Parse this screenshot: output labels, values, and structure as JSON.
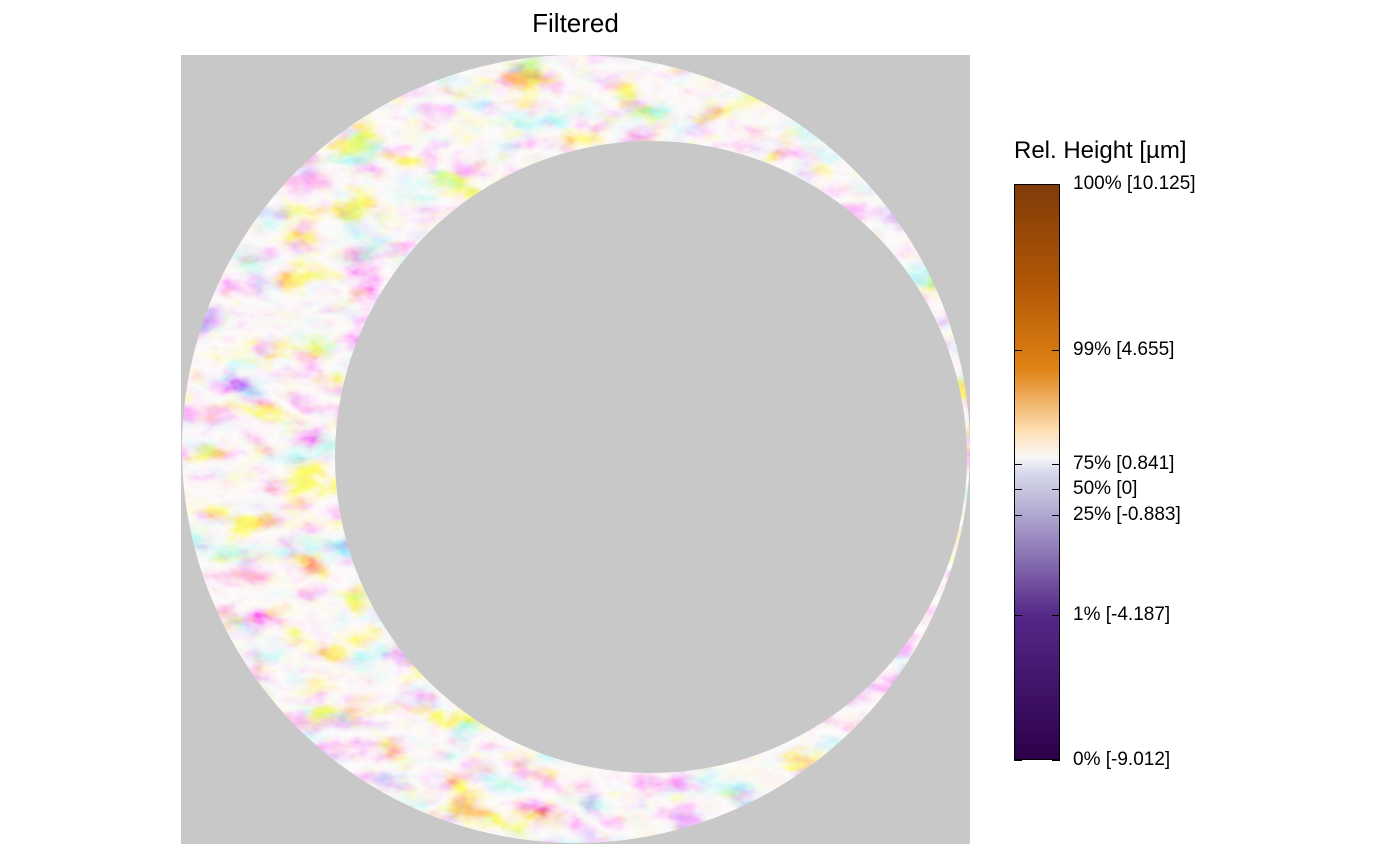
{
  "title": "Filtered",
  "legend": {
    "title": "Rel. Height [µm]",
    "colors": {
      "bottom": "#2d004b",
      "purple": "#542788",
      "lavender": "#b2abd2",
      "light": "#d8daeb",
      "mid": "#f7f7f7",
      "peach": "#fee0b6",
      "orange": "#e08214",
      "brown": "#b35806",
      "top": "#7f3b08"
    },
    "ticks": [
      {
        "percent": 100,
        "value": 10.125,
        "label": "100% [10.125]"
      },
      {
        "percent": 99,
        "value": 4.655,
        "label": "99% [4.655]"
      },
      {
        "percent": 75,
        "value": 0.841,
        "label": "75% [0.841]"
      },
      {
        "percent": 50,
        "value": 0,
        "label": "50% [0]"
      },
      {
        "percent": 25,
        "value": -0.883,
        "label": "25% [-0.883]"
      },
      {
        "percent": 1,
        "value": -4.187,
        "label": "1% [-4.187]"
      },
      {
        "percent": 0,
        "value": -9.012,
        "label": "0% [-9.012]"
      }
    ]
  },
  "panel": {
    "background": "#c8c8c8"
  }
}
